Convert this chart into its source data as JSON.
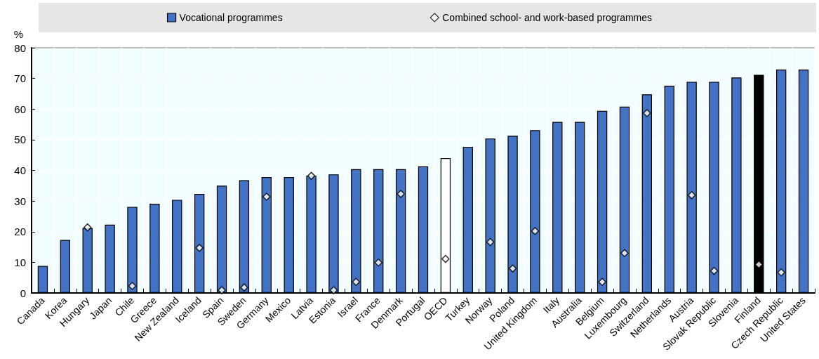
{
  "chart_data": {
    "type": "bar",
    "ylabel": "%",
    "categories": [
      "Canada",
      "Korea",
      "Hungary",
      "Japan",
      "Chile",
      "Greece",
      "New Zealand",
      "Iceland",
      "Spain",
      "Sweden",
      "Germany",
      "Mexico",
      "Latvia",
      "Estonia",
      "Israel",
      "France",
      "Denmark",
      "Portugal",
      "OECD",
      "Turkey",
      "Norway",
      "Poland",
      "United Kingdom",
      "Italy",
      "Australia",
      "Belgium",
      "Luxembourg",
      "Switzerland",
      "Netherlands",
      "Austria",
      "Slovak Republic",
      "Slovenia",
      "Finland",
      "Czech Republic",
      "United States"
    ],
    "series": [
      {
        "name": "Vocational programmes",
        "color": "#4472c4",
        "colors": [
          "#4472c4",
          "#4472c4",
          "#4472c4",
          "#4472c4",
          "#4472c4",
          "#4472c4",
          "#4472c4",
          "#4472c4",
          "#4472c4",
          "#4472c4",
          "#4472c4",
          "#4472c4",
          "#4472c4",
          "#4472c4",
          "#4472c4",
          "#4472c4",
          "#4472c4",
          "#4472c4",
          "#ffffff",
          "#4472c4",
          "#4472c4",
          "#4472c4",
          "#4472c4",
          "#4472c4",
          "#4472c4",
          "#4472c4",
          "#4472c4",
          "#4472c4",
          "#4472c4",
          "#4472c4",
          "#4472c4",
          "#4472c4",
          "#000000",
          "#4472c4",
          "#4472c4"
        ],
        "values": [
          8.8,
          17.3,
          21.2,
          22.3,
          28.1,
          29.1,
          30.4,
          32.3,
          35,
          36.8,
          37.8,
          37.8,
          38.3,
          38.7,
          40.4,
          40.4,
          40.4,
          41.3,
          44,
          47.7,
          50.4,
          51.3,
          53.1,
          55.8,
          55.8,
          59.4,
          60.8,
          64.8,
          67.6,
          68.9,
          68.9,
          70.3,
          71.2,
          72.9,
          72.9
        ]
      },
      {
        "name": "Combined school- and work-based programmes",
        "type": "scatter",
        "marker": "diamond",
        "color": "#ffffff",
        "values": [
          null,
          null,
          21.4,
          null,
          2.3,
          null,
          null,
          14.7,
          0.9,
          1.8,
          31.4,
          null,
          38.2,
          0.9,
          3.6,
          9.9,
          32.3,
          null,
          11.1,
          null,
          16.6,
          8.0,
          20.2,
          null,
          null,
          3.6,
          13,
          58.7,
          null,
          31.9,
          7.2,
          null,
          9.3,
          6.7,
          null
        ]
      }
    ],
    "ylim": [
      0,
      80
    ],
    "yticks": [
      0,
      10,
      20,
      30,
      40,
      50,
      60,
      70,
      80
    ],
    "grid": true,
    "legend": "top"
  }
}
